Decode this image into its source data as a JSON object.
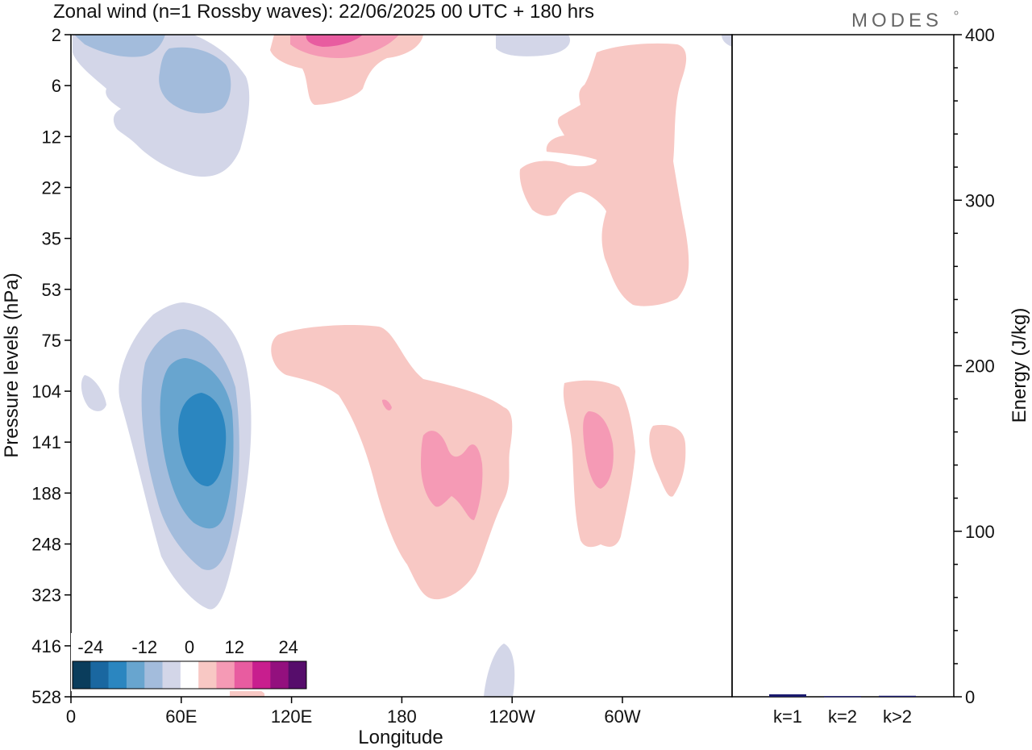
{
  "chart_data": [
    {
      "type": "heatmap",
      "title": "Zonal wind (n=1 Rossby waves):  22/06/2025  00 UTC  + 180 hrs",
      "xlabel": "Longitude",
      "ylabel": "Pressure levels (hPa)",
      "x_ticks": [
        "0",
        "60E",
        "120E",
        "180",
        "120W",
        "60W"
      ],
      "y_ticks": [
        "2",
        "6",
        "12",
        "22",
        "35",
        "53",
        "75",
        "104",
        "141",
        "188",
        "248",
        "323",
        "416",
        "528"
      ],
      "colorbar": {
        "labels": [
          "-24",
          "-12",
          "0",
          "12",
          "24"
        ],
        "colors": [
          "#0a3d5c",
          "#1a67a0",
          "#2b86c0",
          "#68a5cf",
          "#a3bcdc",
          "#d3d6e8",
          "#ffffff",
          "#f8c8c4",
          "#f59ab5",
          "#e85ca0",
          "#c81e8e",
          "#93107e",
          "#560d6b"
        ]
      },
      "regions": [
        {
          "sign": "negative",
          "level": 1,
          "center_lon": 70,
          "center_hPa": 141
        },
        {
          "sign": "negative",
          "level": 2,
          "center_lon": 65,
          "center_hPa": 141
        },
        {
          "sign": "negative",
          "level": 3,
          "center_lon": 65,
          "center_hPa": 141
        },
        {
          "sign": "negative",
          "level": 4,
          "center_lon": 70,
          "center_hPa": 141
        },
        {
          "sign": "negative",
          "level": 1,
          "center_lon": 45,
          "center_hPa": 8
        },
        {
          "sign": "negative",
          "level": 2,
          "center_lon": 70,
          "center_hPa": 5
        },
        {
          "sign": "positive",
          "level": 1,
          "center_lon": 200,
          "center_hPa": 160
        },
        {
          "sign": "positive",
          "level": 2,
          "center_lon": 205,
          "center_hPa": 150
        },
        {
          "sign": "positive",
          "level": 1,
          "center_lon": 290,
          "center_hPa": 150
        },
        {
          "sign": "positive",
          "level": 2,
          "center_lon": 295,
          "center_hPa": 141
        },
        {
          "sign": "positive",
          "level": 1,
          "center_lon": 290,
          "center_hPa": 18
        },
        {
          "sign": "positive",
          "level": 1,
          "center_lon": 150,
          "center_hPa": 3
        },
        {
          "sign": "positive",
          "level": 3,
          "center_lon": 140,
          "center_hPa": 2
        }
      ]
    },
    {
      "type": "bar",
      "ylabel": "Energy (J/kg)",
      "categories": [
        "k=1",
        "k=2",
        "k>2"
      ],
      "values": [
        1.5,
        0.4,
        0.6
      ],
      "ylim": [
        0,
        400
      ],
      "y_ticks": [
        "0",
        "100",
        "200",
        "300",
        "400"
      ],
      "bar_color": "#1a1a6e"
    }
  ],
  "brand": "MODES"
}
